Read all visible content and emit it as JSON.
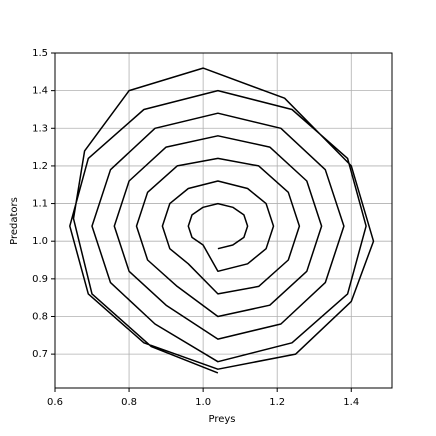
{
  "chart_data": {
    "type": "line",
    "xlabel": "Preys",
    "ylabel": "Predators",
    "color": "#000000",
    "grid": true,
    "xlim": [
      0.6,
      1.51
    ],
    "ylim": [
      0.61,
      1.5
    ],
    "xticks": [
      0.6,
      0.8,
      {
        "value": 1.0,
        "label": "1.0"
      },
      1.2,
      1.4
    ],
    "yticks": [
      0.7,
      0.8,
      0.9,
      {
        "value": 1.0,
        "label": "1.0"
      },
      1.1,
      1.2,
      1.3,
      1.4,
      1.5
    ],
    "x": [
      1.04,
      1.08,
      1.11,
      1.12,
      1.11,
      1.08,
      1.04,
      1.0,
      0.97,
      0.96,
      0.97,
      1.0,
      1.04,
      1.12,
      1.17,
      1.19,
      1.17,
      1.12,
      1.04,
      0.96,
      0.91,
      0.89,
      0.91,
      0.96,
      1.04,
      1.15,
      1.23,
      1.26,
      1.23,
      1.15,
      1.04,
      0.93,
      0.85,
      0.82,
      0.85,
      0.93,
      1.04,
      1.18,
      1.28,
      1.32,
      1.28,
      1.18,
      1.04,
      0.9,
      0.8,
      0.76,
      0.8,
      0.9,
      1.04,
      1.21,
      1.33,
      1.38,
      1.33,
      1.21,
      1.04,
      0.87,
      0.75,
      0.7,
      0.75,
      0.87,
      1.04,
      1.24,
      1.39,
      1.44,
      1.39,
      1.24,
      1.04,
      0.84,
      0.69,
      0.64,
      0.69,
      0.84,
      1.04,
      1.25,
      1.4,
      1.46,
      1.4,
      1.22,
      1.0,
      0.8,
      0.68,
      0.65,
      0.7,
      0.86,
      1.04
    ],
    "values": [
      0.98,
      0.99,
      1.01,
      1.04,
      1.07,
      1.09,
      1.1,
      1.09,
      1.07,
      1.04,
      1.01,
      0.99,
      0.92,
      0.94,
      0.98,
      1.04,
      1.1,
      1.14,
      1.16,
      1.14,
      1.1,
      1.04,
      0.98,
      0.94,
      0.86,
      0.88,
      0.95,
      1.04,
      1.13,
      1.2,
      1.22,
      1.2,
      1.13,
      1.04,
      0.95,
      0.88,
      0.8,
      0.83,
      0.92,
      1.04,
      1.16,
      1.25,
      1.28,
      1.25,
      1.16,
      1.04,
      0.92,
      0.83,
      0.74,
      0.78,
      0.89,
      1.04,
      1.19,
      1.3,
      1.34,
      1.3,
      1.19,
      1.04,
      0.89,
      0.78,
      0.68,
      0.73,
      0.86,
      1.04,
      1.22,
      1.35,
      1.4,
      1.35,
      1.22,
      1.04,
      0.86,
      0.73,
      0.66,
      0.7,
      0.84,
      1.0,
      1.2,
      1.38,
      1.46,
      1.4,
      1.24,
      1.06,
      0.86,
      0.72,
      0.65
    ]
  }
}
